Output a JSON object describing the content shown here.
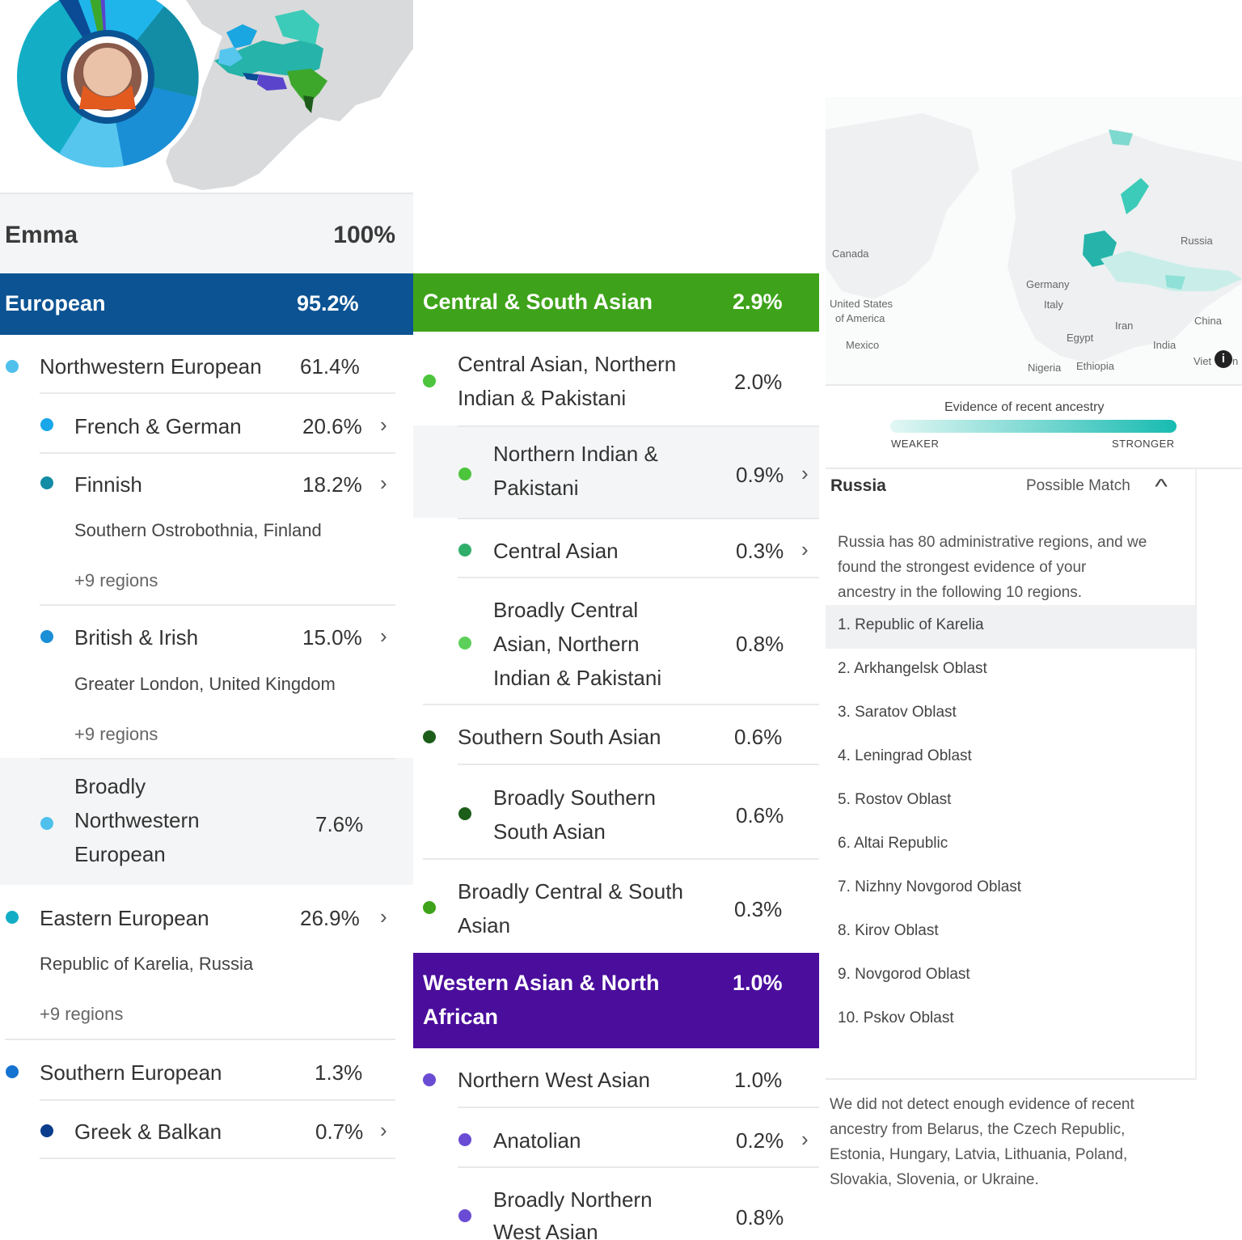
{
  "panel1": {
    "name": "Emma",
    "total": "100%",
    "european": {
      "label": "European",
      "value": "95.2%"
    },
    "nw_european": {
      "label": "Northwestern European",
      "value": "61.4%"
    },
    "french_german": {
      "label": "French & German",
      "value": "20.6%"
    },
    "finnish": {
      "label": "Finnish",
      "value": "18.2%",
      "region": "Southern Ostrobothnia, Finland",
      "more": "+9 regions"
    },
    "british_irish": {
      "label": "British & Irish",
      "value": "15.0%",
      "region": "Greater London, United Kingdom",
      "more": "+9 regions"
    },
    "broadly_nw": {
      "line1": "Broadly",
      "line2": "Northwestern",
      "line3": "European",
      "value": "7.6%"
    },
    "eastern_european": {
      "label": "Eastern European",
      "value": "26.9%",
      "region": "Republic of Karelia, Russia",
      "more": "+9 regions"
    },
    "southern_european": {
      "label": "Southern European",
      "value": "1.3%"
    },
    "greek_balkan": {
      "label": "Greek & Balkan",
      "value": "0.7%"
    }
  },
  "panel2": {
    "csa": {
      "label": "Central & South Asian",
      "value": "2.9%"
    },
    "central_n_indian": {
      "line1": "Central Asian, Northern",
      "line2": "Indian & Pakistani",
      "value": "2.0%"
    },
    "n_indian": {
      "line1": "Northern Indian &",
      "line2": "Pakistani",
      "value": "0.9%"
    },
    "central_asian": {
      "label": "Central Asian",
      "value": "0.3%"
    },
    "broadly_central": {
      "line1": "Broadly Central",
      "line2": "Asian, Northern",
      "line3": "Indian & Pakistani",
      "value": "0.8%"
    },
    "southern_south": {
      "label": "Southern South Asian",
      "value": "0.6%"
    },
    "broadly_southern": {
      "line1": "Broadly Southern",
      "line2": "South Asian",
      "value": "0.6%"
    },
    "broadly_csa": {
      "line1": "Broadly Central & South",
      "line2": "Asian",
      "value": "0.3%"
    },
    "wana": {
      "line1": "Western Asian & North",
      "line2": "African",
      "value": "1.0%"
    },
    "nw_asian": {
      "label": "Northern West Asian",
      "value": "1.0%"
    },
    "anatolian": {
      "label": "Anatolian",
      "value": "0.2%"
    },
    "broadly_nw_asian": {
      "line1": "Broadly Northern",
      "line2": "West Asian",
      "value": "0.8%"
    }
  },
  "panel3": {
    "map_labels": {
      "canada": "Canada",
      "usa1": "United States",
      "usa2": "of America",
      "mexico": "Mexico",
      "germany": "Germany",
      "italy": "Italy",
      "egypt": "Egypt",
      "iran": "Iran",
      "india": "India",
      "china": "China",
      "russia": "Russia",
      "nigeria": "Nigeria",
      "ethiopia": "Ethiopia",
      "vietnam": "Viet",
      "vietnam_tail": "n"
    },
    "evidence_title": "Evidence of recent ancestry",
    "weaker": "WEAKER",
    "stronger": "STRONGER",
    "country": "Russia",
    "match": "Possible Match",
    "intro1": "Russia has 80 administrative regions, and we",
    "intro2": "found the strongest evidence of your",
    "intro3": "ancestry in the following 10 regions.",
    "regions": [
      "1. Republic of Karelia",
      "2. Arkhangelsk Oblast",
      "3. Saratov Oblast",
      "4. Leningrad Oblast",
      "5. Rostov Oblast",
      "6. Altai Republic",
      "7. Nizhny Novgorod Oblast",
      "8. Kirov Oblast",
      "9. Novgorod Oblast",
      "10. Pskov Oblast"
    ],
    "note1": "We did not detect enough evidence of recent",
    "note2": "ancestry from Belarus, the Czech Republic,",
    "note3": "Estonia, Hungary, Latvia, Lithuania, Poland,",
    "note4": "Slovakia, Slovenia, or Ukraine."
  },
  "colors": {
    "european": "#0b5393",
    "csa": "#3ea31a",
    "wana": "#4a0d9c",
    "nw_dot": "#4fc0ec",
    "fg_dot": "#19a7ea",
    "finnish_dot": "#138ca5",
    "british_dot": "#1b8fd6",
    "eastern_dot": "#13aec6",
    "southern_dot": "#1472d0",
    "greek_dot": "#0a3e8c",
    "csa_dot": "#4cc53c",
    "ssa_dot": "#1c5e19",
    "wana_dot": "#6a4bd4"
  }
}
